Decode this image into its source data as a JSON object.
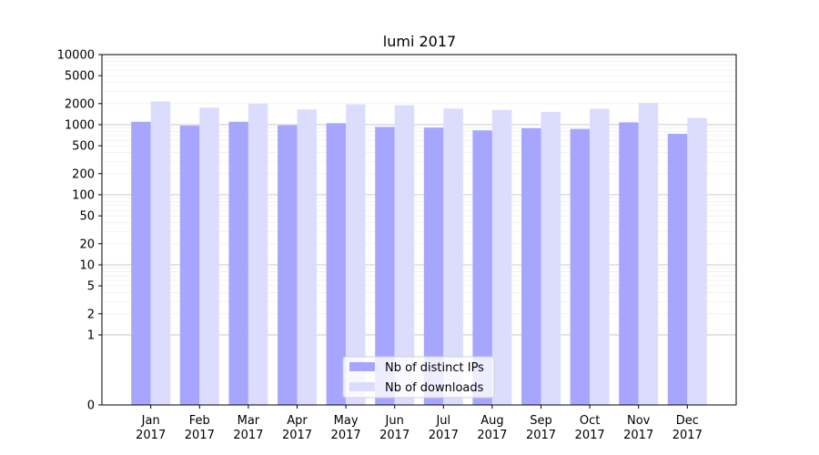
{
  "chart_data": {
    "type": "bar",
    "title": "lumi 2017",
    "xlabel": "",
    "ylabel": "",
    "y_scale": "symlog",
    "ylim": [
      0,
      10000
    ],
    "y_ticks": [
      0,
      1,
      2,
      5,
      10,
      20,
      50,
      100,
      200,
      500,
      1000,
      2000,
      5000,
      10000
    ],
    "categories": [
      [
        "Jan",
        "2017"
      ],
      [
        "Feb",
        "2017"
      ],
      [
        "Mar",
        "2017"
      ],
      [
        "Apr",
        "2017"
      ],
      [
        "May",
        "2017"
      ],
      [
        "Jun",
        "2017"
      ],
      [
        "Jul",
        "2017"
      ],
      [
        "Aug",
        "2017"
      ],
      [
        "Sep",
        "2017"
      ],
      [
        "Oct",
        "2017"
      ],
      [
        "Nov",
        "2017"
      ],
      [
        "Dec",
        "2017"
      ]
    ],
    "series": [
      {
        "name": "Nb of distinct IPs",
        "color": "#a6a6ff",
        "values": [
          1100,
          970,
          1100,
          980,
          1050,
          930,
          910,
          830,
          890,
          870,
          1080,
          740
        ]
      },
      {
        "name": "Nb of downloads",
        "color": "#dcdcff",
        "values": [
          2150,
          1750,
          2000,
          1650,
          1950,
          1900,
          1700,
          1620,
          1520,
          1680,
          2050,
          1250
        ]
      }
    ],
    "legend_position": "lower-center",
    "grid": true
  }
}
